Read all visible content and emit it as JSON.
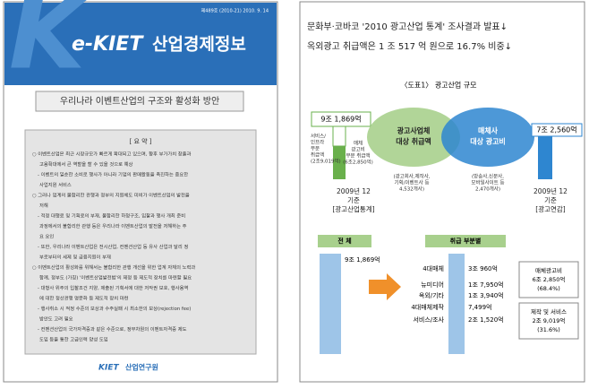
{
  "left_page": {
    "issue": "제489호 (2010-21) 2010. 9. 14",
    "brand": "e-KIET",
    "title": "산업경제정보",
    "report_title": "우리나라 이벤트산업의 구조와 활성화 방안",
    "summary_heading": "[ 요 약 ]",
    "summary_lines": [
      "○ 이벤트산업은 최근 시장규모가 빠르게 확대되고 있으며, 향후 부가가치 창출과",
      "고용확대에서 큰 역할을 할 수 있을 것으로 예상",
      "- 이벤트의 일순한 소비로 행사가 아니라 기업의 판매활동을 촉진하는 중요한",
      "사업지원 서비스",
      "○ 그러나 업계의 불합리한 관행과 정부의 지원체도 미비가 이벤트산업의 발전을",
      "저해",
      "- 적정 대행료 및 기획료의 부재, 불합리한 하청구조, 입찰과 행사 개최 준비",
      "과정에서의 불합리한 관행 등은 우리나라 이벤트산업의 발전을 저해하는 주",
      "요 요인",
      "- 또한, 우리나라 이벤트산업은 전시산업, 컨벤션산업 등 유사 산업과 달리 정",
      "부로부터의 세제 및 금융지원이 부재",
      "○ 이벤트산업의 활성화를 위해서는 불합리한 관행 개선을 위한 업계 자체의 노력과",
      "함께, 정부도 (가칭) '이벤트산업발전법'의 제정 등 제도적 장치를 마련할 필요",
      "- 대형사 위주의 입찰조건 지양, 제출된 기획서에 대한 저작권 보호, 행사용역",
      "에 대한 정산관행 명문화 등 제도적 장치 마련",
      "- 행사취소 시 적정 수준의 보상과 수주실패 시 최소한의 보상(rejection fee)",
      "방안도 고려 필요",
      "- 컨벤션산업의 국가자격증과 같은 수준으로, 정부차원의 이벤트자격증 제도",
      "도입 등을 통한 고급인력 양성 도입"
    ],
    "footer_brand": "KIET",
    "footer_org": "산업연구원"
  },
  "right_page": {
    "headline_1": "문화부·코바코 '2010 광고산업 통계' 조사결과 발표↓",
    "headline_2": "옥외광고 취급액은 1 조 517 억 원으로 16.7% 비중↓",
    "figure_title": "〈도표1〉 광고산업 규모",
    "total_left": "9조 1,869억",
    "service_label": [
      "서비스/",
      "인프라",
      "부분",
      "취급액",
      "(2조9,019억)"
    ],
    "media_label": [
      "매체",
      "광고비",
      "부분 취급액",
      "(6조2,850억)"
    ],
    "ellipse_green": [
      "광고사업체",
      "대상 취급액"
    ],
    "ellipse_blue": [
      "매체사",
      "대상 광고비"
    ],
    "green_note": [
      "(광고회사,제작사,",
      "기획/이벤트사 등",
      "4,532개사)"
    ],
    "blue_note": [
      "(방송사,신문사,",
      "모바일사이트 등",
      "2,470개사)"
    ],
    "total_right": "7조 2,560억",
    "basis_left": [
      "2009년 12",
      "기준",
      "[광고산업통계]"
    ],
    "basis_right": [
      "2009년 12",
      "기준",
      "[광고연감]"
    ],
    "whole_heading": "전 체",
    "part_heading": "취급 부분별",
    "whole_value": "9조 1,869억",
    "rows": [
      {
        "label": "4대매체",
        "value": "3조 960억"
      },
      {
        "label": "뉴미디어",
        "value": "1조 7,950억"
      },
      {
        "label": "옥외/기타",
        "value": "1조 3,940억"
      },
      {
        "label": "4대매체제작",
        "value": "7,499억"
      },
      {
        "label": "서비스/조사",
        "value": "2조 1,520억"
      }
    ],
    "media_box": [
      "매체광고비",
      "6조 2,850억",
      "(68.4%)"
    ],
    "service_box": [
      "제작 및 서비스",
      "2조 9,019억",
      "(31.6%)"
    ]
  }
}
